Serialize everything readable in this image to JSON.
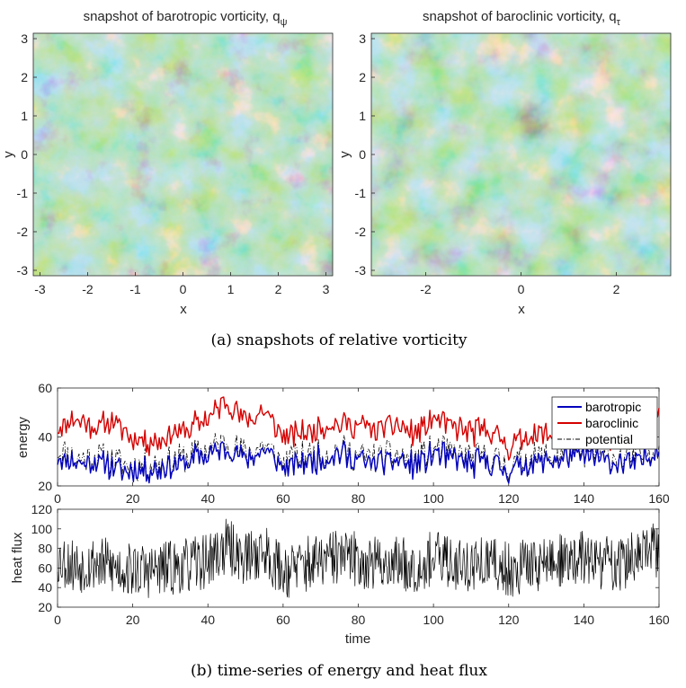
{
  "colors": {
    "barotropic": "#0000bd",
    "baroclinic": "#d40000",
    "potential": "#000000",
    "heat_flux": "#000000",
    "field_base": "#6fbf8f",
    "field_pos": "#f0c53a",
    "field_neg": "#2a53c8"
  },
  "caption_a": "(a)  snapshots of relative vorticity",
  "caption_b": "(b)  time-series of energy and heat flux",
  "chart_data": [
    {
      "type": "heatmap",
      "title": "snapshot of barotropic vorticity, q",
      "title_subscript": "ψ",
      "xlabel": "x",
      "ylabel": "y",
      "xlim": [
        -3.14,
        3.14
      ],
      "ylim": [
        -3.14,
        3.14
      ],
      "xticks": [
        -3,
        -2,
        -1,
        0,
        1,
        2,
        3
      ],
      "yticks": [
        -3,
        -2,
        -1,
        0,
        1,
        2,
        3
      ],
      "xtick_labels": [
        "-3",
        "-2",
        "-1",
        "0",
        "1",
        "2",
        "3"
      ],
      "ytick_labels": [
        "-3",
        "-2",
        "-1",
        "0",
        "1",
        "2",
        "3"
      ]
    },
    {
      "type": "heatmap",
      "title": "snapshot of baroclinic vorticity, q",
      "title_subscript": "τ",
      "xlabel": "x",
      "ylabel": "y",
      "xlim": [
        -3.14,
        3.14
      ],
      "ylim": [
        -3.14,
        3.14
      ],
      "xticks": [
        -2,
        0,
        2
      ],
      "yticks": [
        -3,
        -2,
        -1,
        0,
        1,
        2,
        3
      ],
      "xtick_labels": [
        "-2",
        "0",
        "2"
      ],
      "ytick_labels": [
        "-3",
        "-2",
        "-1",
        "0",
        "1",
        "2",
        "3"
      ]
    },
    {
      "type": "line",
      "ylabel": "energy",
      "xlabel": "",
      "xlim": [
        0,
        160
      ],
      "ylim": [
        20,
        60
      ],
      "xticks": [
        0,
        20,
        40,
        60,
        80,
        100,
        120,
        140,
        160
      ],
      "yticks": [
        20,
        40,
        60
      ],
      "legend": "top-right",
      "x": [
        0,
        5,
        10,
        15,
        20,
        25,
        30,
        35,
        40,
        45,
        50,
        55,
        60,
        65,
        70,
        75,
        80,
        85,
        90,
        95,
        100,
        105,
        110,
        115,
        120,
        125,
        130,
        135,
        140,
        145,
        150,
        155,
        160
      ],
      "series": [
        {
          "name": "barotropic",
          "values": [
            32,
            29,
            30,
            28,
            26,
            27,
            28,
            30,
            33,
            36,
            31,
            35,
            27,
            30,
            31,
            33,
            30,
            29,
            31,
            28,
            33,
            31,
            29,
            30,
            26,
            29,
            30,
            31,
            32,
            31,
            29,
            30,
            36
          ]
        },
        {
          "name": "baroclinic",
          "values": [
            45,
            47,
            44,
            46,
            40,
            38,
            41,
            43,
            48,
            55,
            46,
            51,
            39,
            42,
            44,
            46,
            44,
            43,
            45,
            40,
            48,
            44,
            42,
            43,
            36,
            40,
            41,
            43,
            42,
            40,
            41,
            47,
            52
          ]
        },
        {
          "name": "potential",
          "values": [
            35,
            31,
            32,
            30,
            28,
            29,
            30,
            32,
            35,
            38,
            33,
            37,
            29,
            32,
            33,
            35,
            32,
            31,
            33,
            30,
            35,
            33,
            31,
            32,
            28,
            31,
            32,
            33,
            34,
            33,
            31,
            32,
            38
          ]
        }
      ]
    },
    {
      "type": "line",
      "ylabel": "heat flux",
      "xlabel": "time",
      "xlim": [
        0,
        160
      ],
      "ylim": [
        20,
        120
      ],
      "xticks": [
        0,
        20,
        40,
        60,
        80,
        100,
        120,
        140,
        160
      ],
      "yticks": [
        20,
        40,
        60,
        80,
        100,
        120
      ],
      "x": [
        0,
        5,
        10,
        15,
        20,
        25,
        30,
        35,
        40,
        45,
        50,
        55,
        60,
        65,
        70,
        75,
        80,
        85,
        90,
        95,
        100,
        105,
        110,
        115,
        120,
        125,
        130,
        135,
        140,
        145,
        150,
        155,
        160
      ],
      "series": [
        {
          "name": "heat flux",
          "values": [
            70,
            62,
            66,
            60,
            58,
            57,
            60,
            62,
            68,
            82,
            70,
            78,
            56,
            63,
            66,
            72,
            68,
            64,
            66,
            62,
            70,
            66,
            63,
            64,
            58,
            63,
            66,
            67,
            70,
            66,
            64,
            72,
            80
          ]
        }
      ]
    }
  ]
}
